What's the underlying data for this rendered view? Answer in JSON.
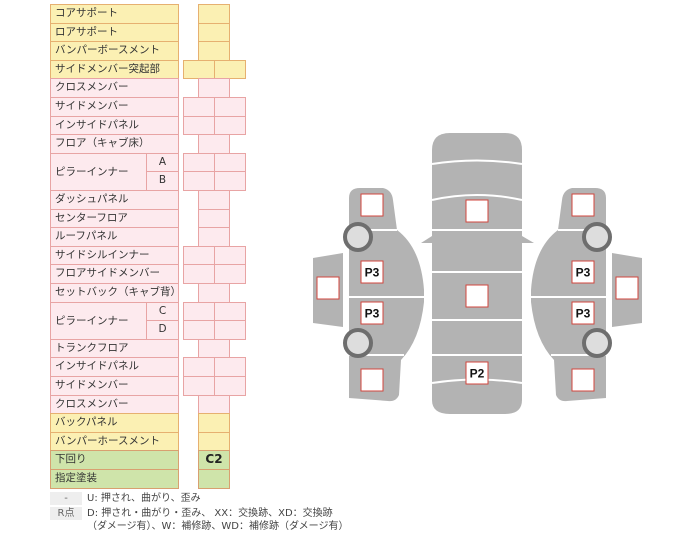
{
  "table": {
    "rows": [
      {
        "label": "コアサポート",
        "color": "yellow",
        "cols": 1
      },
      {
        "label": "ロアサポート",
        "color": "yellow",
        "cols": 1
      },
      {
        "label": "バンパーボースメント",
        "color": "yellow",
        "cols": 1
      },
      {
        "label": "サイドメンバー突起部",
        "color": "yellow",
        "cols": 2
      },
      {
        "label": "クロスメンバー",
        "color": "pink",
        "cols": 1
      },
      {
        "label": "サイドメンバー",
        "color": "pink",
        "cols": 2
      },
      {
        "label": "インサイドパネル",
        "color": "pink",
        "cols": 2
      },
      {
        "label": "フロア（キャブ床）",
        "color": "pink",
        "cols": 1
      },
      {
        "label": "ピラーインナー",
        "sub": "A",
        "color": "pink",
        "cols": 2,
        "group_start": true
      },
      {
        "label": "",
        "sub": "B",
        "color": "pink",
        "cols": 2,
        "group_cont": true
      },
      {
        "label": "ダッシュパネル",
        "color": "pink",
        "cols": 1
      },
      {
        "label": "センターフロア",
        "color": "pink",
        "cols": 1
      },
      {
        "label": "ルーフパネル",
        "color": "pink",
        "cols": 1
      },
      {
        "label": "サイドシルインナー",
        "color": "pink",
        "cols": 2
      },
      {
        "label": "フロアサイドメンバー",
        "color": "pink",
        "cols": 2
      },
      {
        "label": "セットバック（キャブ背）",
        "color": "pink",
        "cols": 1
      },
      {
        "label": "ピラーインナー",
        "sub": "C",
        "color": "pink",
        "cols": 2,
        "group_start": true
      },
      {
        "label": "",
        "sub": "D",
        "color": "pink",
        "cols": 2,
        "group_cont": true
      },
      {
        "label": "トランクフロア",
        "color": "pink",
        "cols": 1
      },
      {
        "label": "インサイドパネル",
        "color": "pink",
        "cols": 2
      },
      {
        "label": "サイドメンバー",
        "color": "pink",
        "cols": 2
      },
      {
        "label": "クロスメンバー",
        "color": "pink",
        "cols": 1
      },
      {
        "label": "バックパネル",
        "color": "yellow",
        "cols": 1
      },
      {
        "label": "バンパーホースメント",
        "color": "yellow",
        "cols": 1
      },
      {
        "label": "下回り",
        "color": "green",
        "cols": 1,
        "value": "C2"
      },
      {
        "label": "指定塗装",
        "color": "green",
        "cols": 1
      }
    ]
  },
  "diagram": {
    "marks": {
      "left_front": "",
      "left_front_door": "P3",
      "left_rear_door": "P3",
      "left_rear": "",
      "left_side_panel": "",
      "center_hood": "",
      "center_roof": "",
      "center_trunk": "P2",
      "right_front": "",
      "right_front_door": "P3",
      "right_rear_door": "P3",
      "right_rear": "",
      "right_side_panel": ""
    },
    "body_color": "#b3b3b3",
    "box_border": "#d0463c"
  },
  "legend": [
    {
      "key": "-",
      "text": "U: 押され、曲がり、歪み"
    },
    {
      "key": "R点",
      "text": "D: 押され・曲がり・歪み、 XX：交換跡、XD：交換跡"
    },
    {
      "key": "",
      "text": "（ダメージ有）、W：補修跡、WD：補修跡（ダメージ有）"
    }
  ]
}
